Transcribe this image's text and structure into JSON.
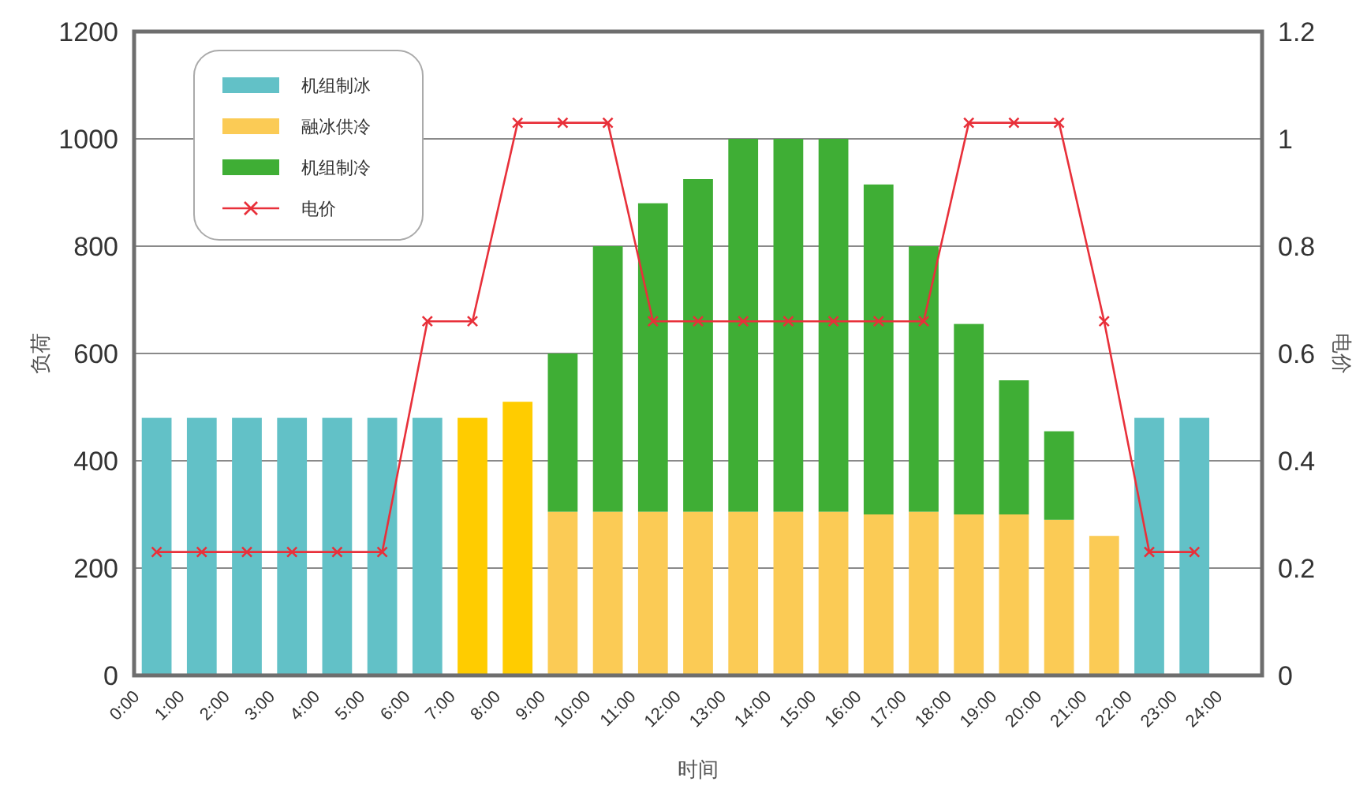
{
  "chart_data": {
    "type": "bar",
    "stacked": true,
    "xlabel": "时间",
    "ylabel": "负荷",
    "y2label": "电价",
    "x": [
      0.5,
      1.5,
      2.5,
      3.5,
      4.5,
      5.5,
      6.5,
      7.5,
      8.5,
      9.5,
      10.5,
      11.5,
      12.5,
      13.5,
      14.5,
      15.5,
      16.5,
      17.5,
      18.5,
      19.5,
      20.5,
      21.5,
      22.5,
      23.5
    ],
    "xlim": [
      0,
      25
    ],
    "xticks": [
      {
        "value": 0,
        "label": "0:00"
      },
      {
        "value": 1,
        "label": "1:00"
      },
      {
        "value": 2,
        "label": "2:00"
      },
      {
        "value": 3,
        "label": "3:00"
      },
      {
        "value": 4,
        "label": "4:00"
      },
      {
        "value": 5,
        "label": "5:00"
      },
      {
        "value": 6,
        "label": "6:00"
      },
      {
        "value": 7,
        "label": "7:00"
      },
      {
        "value": 8,
        "label": "8:00"
      },
      {
        "value": 9,
        "label": "9:00"
      },
      {
        "value": 10,
        "label": "10:00"
      },
      {
        "value": 11,
        "label": "11:00"
      },
      {
        "value": 12,
        "label": "12:00"
      },
      {
        "value": 13,
        "label": "13:00"
      },
      {
        "value": 14,
        "label": "14:00"
      },
      {
        "value": 15,
        "label": "15:00"
      },
      {
        "value": 16,
        "label": "16:00"
      },
      {
        "value": 17,
        "label": "17:00"
      },
      {
        "value": 18,
        "label": "18:00"
      },
      {
        "value": 19,
        "label": "19:00"
      },
      {
        "value": 20,
        "label": "20:00"
      },
      {
        "value": 21,
        "label": "21:00"
      },
      {
        "value": 22,
        "label": "22:00"
      },
      {
        "value": 23,
        "label": "23:00"
      },
      {
        "value": 24,
        "label": "24:00"
      }
    ],
    "ylim": [
      0,
      1200
    ],
    "yticks": [
      0,
      200,
      400,
      600,
      800,
      1000,
      1200
    ],
    "y2lim": [
      0,
      1.2
    ],
    "y2ticks": [
      0,
      0.2,
      0.4,
      0.6,
      0.8,
      1,
      1.2
    ],
    "grid": "y",
    "legend": "top left",
    "series": [
      {
        "name": "机组制冰",
        "color": "#62c1c7",
        "values": [
          480,
          480,
          480,
          480,
          480,
          480,
          480,
          null,
          null,
          null,
          null,
          null,
          null,
          null,
          null,
          null,
          null,
          null,
          null,
          null,
          null,
          null,
          480,
          480
        ]
      },
      {
        "name": "融冰供冷",
        "color": "#fbcb55",
        "colors": [
          null,
          null,
          null,
          null,
          null,
          null,
          null,
          "#ffcc00",
          "#ffcc00",
          "#fbcb55",
          "#fbcb55",
          "#fbcb55",
          "#fbcb55",
          "#fbcb55",
          "#fbcb55",
          "#fbcb55",
          "#fbcb55",
          "#fbcb55",
          "#fbcb55",
          "#fbcb55",
          "#fbcb55",
          "#fbcb55",
          null,
          null
        ],
        "values": [
          null,
          null,
          null,
          null,
          null,
          null,
          null,
          480,
          510,
          305,
          305,
          305,
          305,
          305,
          305,
          305,
          300,
          305,
          300,
          300,
          290,
          260,
          null,
          null
        ]
      },
      {
        "name": "机组制冷",
        "color": "#3fae35",
        "values": [
          null,
          null,
          null,
          null,
          null,
          null,
          null,
          null,
          null,
          295,
          495,
          575,
          620,
          695,
          695,
          695,
          615,
          495,
          355,
          250,
          165,
          null,
          null,
          null
        ]
      },
      {
        "name": "电价",
        "type": "line",
        "axis": "y2",
        "marker": "cross",
        "color": "#e8303a",
        "values": [
          0.23,
          0.23,
          0.23,
          0.23,
          0.23,
          0.23,
          0.66,
          0.66,
          1.03,
          1.03,
          1.03,
          0.66,
          0.66,
          0.66,
          0.66,
          0.66,
          0.66,
          0.66,
          1.03,
          1.03,
          1.03,
          0.66,
          0.23,
          0.23
        ]
      }
    ]
  }
}
